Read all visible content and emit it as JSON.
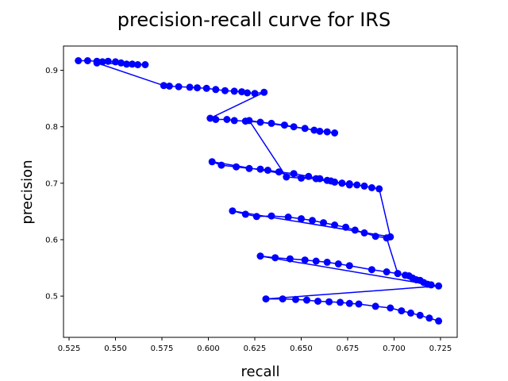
{
  "chart_data": {
    "type": "line",
    "title": "precision-recall curve for IRS",
    "xlabel": "recall",
    "ylabel": "precision",
    "xlim": [
      0.522,
      0.734
    ],
    "ylim": [
      0.427,
      0.943
    ],
    "xticks": [
      0.525,
      0.55,
      0.575,
      0.6,
      0.625,
      0.65,
      0.675,
      0.7,
      0.725
    ],
    "xtick_labels": [
      "0.525",
      "0.550",
      "0.575",
      "0.600",
      "0.625",
      "0.650",
      "0.675",
      "0.700",
      "0.725"
    ],
    "yticks": [
      0.5,
      0.6,
      0.7,
      0.8,
      0.9
    ],
    "ytick_labels": [
      "0.5",
      "0.6",
      "0.7",
      "0.8",
      "0.9"
    ],
    "grid": false,
    "legend": "none",
    "color": "#0000ff",
    "series": [
      {
        "x": [
          0.53,
          0.535,
          0.54,
          0.543,
          0.546,
          0.55,
          0.553,
          0.556,
          0.559,
          0.562,
          0.566,
          0.54,
          0.576,
          0.579,
          0.584,
          0.59,
          0.594,
          0.599,
          0.604,
          0.609,
          0.614,
          0.618,
          0.621,
          0.625,
          0.63,
          0.601,
          0.604,
          0.61,
          0.614,
          0.62,
          0.628,
          0.634,
          0.641,
          0.646,
          0.652,
          0.657,
          0.66,
          0.664,
          0.668,
          0.622,
          0.642,
          0.65,
          0.658,
          0.664,
          0.668,
          0.672,
          0.676,
          0.602,
          0.607,
          0.615,
          0.622,
          0.628,
          0.632,
          0.638,
          0.646,
          0.654,
          0.66,
          0.666,
          0.672,
          0.676,
          0.68,
          0.684,
          0.688,
          0.692,
          0.698,
          0.613,
          0.62,
          0.626,
          0.634,
          0.643,
          0.65,
          0.656,
          0.662,
          0.668,
          0.674,
          0.679,
          0.684,
          0.69,
          0.696,
          0.702,
          0.706,
          0.71,
          0.714,
          0.718,
          0.628,
          0.636,
          0.644,
          0.652,
          0.658,
          0.664,
          0.67,
          0.676,
          0.688,
          0.696,
          0.702,
          0.708,
          0.712,
          0.716,
          0.72,
          0.724,
          0.631,
          0.64,
          0.647,
          0.653,
          0.659,
          0.665,
          0.671,
          0.676,
          0.681,
          0.69,
          0.698,
          0.704,
          0.709,
          0.714,
          0.719,
          0.724
        ],
        "y": [
          0.917,
          0.917,
          0.916,
          0.915,
          0.916,
          0.915,
          0.913,
          0.911,
          0.911,
          0.91,
          0.91,
          0.913,
          0.873,
          0.872,
          0.871,
          0.87,
          0.869,
          0.868,
          0.866,
          0.864,
          0.863,
          0.862,
          0.86,
          0.859,
          0.861,
          0.815,
          0.813,
          0.813,
          0.811,
          0.81,
          0.808,
          0.806,
          0.803,
          0.8,
          0.797,
          0.794,
          0.792,
          0.791,
          0.789,
          0.811,
          0.711,
          0.709,
          0.708,
          0.705,
          0.702,
          0.7,
          0.697,
          0.738,
          0.732,
          0.729,
          0.726,
          0.725,
          0.723,
          0.72,
          0.717,
          0.712,
          0.708,
          0.704,
          0.7,
          0.699,
          0.697,
          0.695,
          0.692,
          0.69,
          0.605,
          0.651,
          0.645,
          0.641,
          0.642,
          0.64,
          0.637,
          0.634,
          0.63,
          0.626,
          0.622,
          0.617,
          0.612,
          0.606,
          0.603,
          0.54,
          0.537,
          0.532,
          0.528,
          0.521,
          0.571,
          0.568,
          0.566,
          0.564,
          0.562,
          0.56,
          0.557,
          0.554,
          0.547,
          0.543,
          0.54,
          0.536,
          0.529,
          0.524,
          0.52,
          0.518,
          0.495,
          0.495,
          0.494,
          0.493,
          0.491,
          0.49,
          0.489,
          0.487,
          0.486,
          0.482,
          0.479,
          0.474,
          0.47,
          0.466,
          0.461,
          0.456
        ]
      }
    ]
  }
}
